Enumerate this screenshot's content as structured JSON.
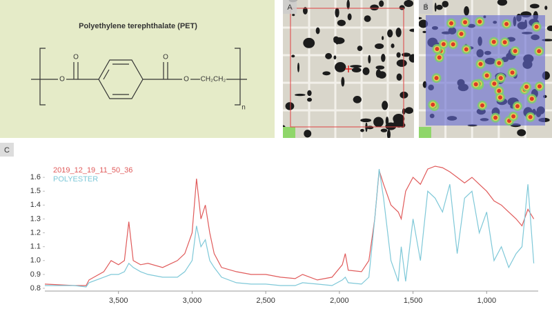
{
  "panels": {
    "a": "A",
    "b": "B",
    "c": "C"
  },
  "structure": {
    "title": "Polyethylene terephthalate (PET)",
    "carbonyl_o_1": "O",
    "carbonyl_o_2": "O",
    "ester_o_1": "O",
    "ester_o_2": "O",
    "ethylene": "CH₂CH₂",
    "repeat": "n"
  },
  "chart_data": {
    "type": "line",
    "x": [
      4000,
      3800,
      3720,
      3700,
      3600,
      3550,
      3500,
      3460,
      3430,
      3400,
      3350,
      3300,
      3200,
      3100,
      3050,
      3000,
      2970,
      2940,
      2910,
      2880,
      2850,
      2800,
      2700,
      2600,
      2500,
      2400,
      2300,
      2250,
      2150,
      2050,
      1980,
      1960,
      1940,
      1850,
      1800,
      1760,
      1730,
      1700,
      1650,
      1600,
      1580,
      1550,
      1500,
      1450,
      1400,
      1350,
      1300,
      1250,
      1200,
      1150,
      1100,
      1050,
      1000,
      950,
      900,
      850,
      800,
      760,
      720,
      680
    ],
    "series": [
      {
        "name": "2019_12_19_11_50_36",
        "color": "#e05a5a",
        "values": [
          0.83,
          0.82,
          0.82,
          0.86,
          0.92,
          1.0,
          0.97,
          1.0,
          1.28,
          1.0,
          0.97,
          0.98,
          0.95,
          1.0,
          1.05,
          1.2,
          1.59,
          1.3,
          1.4,
          1.2,
          1.05,
          0.95,
          0.92,
          0.9,
          0.9,
          0.88,
          0.87,
          0.9,
          0.86,
          0.88,
          0.97,
          1.05,
          0.93,
          0.92,
          1.0,
          1.3,
          1.65,
          1.55,
          1.4,
          1.35,
          1.3,
          1.5,
          1.6,
          1.55,
          1.66,
          1.68,
          1.67,
          1.64,
          1.6,
          1.56,
          1.6,
          1.55,
          1.5,
          1.43,
          1.4,
          1.35,
          1.3,
          1.25,
          1.37,
          1.3
        ]
      },
      {
        "name": "POLYESTER",
        "color": "#7ec8d8",
        "values": [
          0.82,
          0.82,
          0.81,
          0.84,
          0.88,
          0.9,
          0.9,
          0.92,
          0.98,
          0.95,
          0.92,
          0.9,
          0.88,
          0.88,
          0.92,
          1.0,
          1.25,
          1.1,
          1.15,
          1.0,
          0.95,
          0.88,
          0.84,
          0.83,
          0.83,
          0.82,
          0.82,
          0.84,
          0.83,
          0.82,
          0.86,
          0.88,
          0.84,
          0.83,
          0.88,
          1.3,
          1.66,
          1.45,
          1.0,
          0.85,
          1.1,
          0.85,
          1.3,
          1.0,
          1.5,
          1.45,
          1.35,
          1.55,
          1.05,
          1.45,
          1.5,
          1.2,
          1.35,
          1.0,
          1.1,
          0.95,
          1.05,
          1.1,
          1.55,
          0.98
        ]
      }
    ],
    "xlim": [
      4000,
      650
    ],
    "xticks": [
      {
        "value": 3500,
        "label": "3,500"
      },
      {
        "value": 3000,
        "label": "3,000"
      },
      {
        "value": 2500,
        "label": "2,500"
      },
      {
        "value": 2000,
        "label": "2,000"
      },
      {
        "value": 1500,
        "label": "1,500"
      },
      {
        "value": 1000,
        "label": "1,000"
      }
    ],
    "ylim": [
      0.78,
      1.72
    ],
    "yticks": [
      0.8,
      0.9,
      {
        "value": 1.0,
        "label": "1.0"
      },
      1.1,
      1.2,
      1.3,
      1.4,
      1.5,
      1.6
    ],
    "legend": "upper left"
  }
}
